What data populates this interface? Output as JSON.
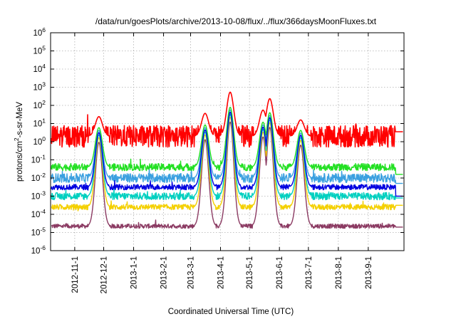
{
  "chart_data": {
    "type": "line",
    "title": "/data/run/goesPlots/archive/2013-10-08/flux/../flux/366daysMoonFluxes.txt",
    "xlabel": "Coordinated Universal Time (UTC)",
    "ylabel_base": "protons/cm",
    "ylabel_sup": "2",
    "ylabel_rest": "-s-sr-MeV",
    "y_scale": "log",
    "ylim_exp": [
      -6,
      6
    ],
    "y_ticks": [
      {
        "base": "10",
        "exp": "-6"
      },
      {
        "base": "10",
        "exp": "-5"
      },
      {
        "base": "10",
        "exp": "-4"
      },
      {
        "base": "10",
        "exp": "-3"
      },
      {
        "base": "10",
        "exp": "-2"
      },
      {
        "base": "10",
        "exp": "-1"
      },
      {
        "base": "10",
        "exp": "0"
      },
      {
        "base": "10",
        "exp": "1"
      },
      {
        "base": "10",
        "exp": "2"
      },
      {
        "base": "10",
        "exp": "3"
      },
      {
        "base": "10",
        "exp": "4"
      },
      {
        "base": "10",
        "exp": "5"
      },
      {
        "base": "10",
        "exp": "6"
      }
    ],
    "x_range": [
      "2012-10-07",
      "2013-10-08"
    ],
    "x_ticks": [
      "2012-11-1",
      "2012-12-1",
      "2013-1-1",
      "2013-2-1",
      "2013-3-1",
      "2013-4-1",
      "2013-5-1",
      "2013-6-1",
      "2013-7-1",
      "2013-8-1",
      "2013-9-1"
    ],
    "x_tick_dates": [
      "2012-11-01",
      "2012-12-01",
      "2013-01-01",
      "2013-02-01",
      "2013-03-01",
      "2013-04-01",
      "2013-05-01",
      "2013-06-01",
      "2013-07-01",
      "2013-08-01",
      "2013-09-01"
    ],
    "grid": true,
    "legend": "none",
    "series": [
      {
        "color": "#8b3a62",
        "baseline_log": -4.65,
        "noise": 0.12,
        "end_log": -4.7
      },
      {
        "color": "#f4d000",
        "baseline_log": -3.6,
        "noise": 0.15,
        "end_log": -3.5
      },
      {
        "color": "#3aa0e0",
        "baseline_log": -2.0,
        "noise": 0.25,
        "end_log": -2.3
      },
      {
        "color": "#00d0c0",
        "baseline_log": -3.0,
        "noise": 0.2,
        "end_log": -3.1
      },
      {
        "color": "#22e022",
        "baseline_log": -1.4,
        "noise": 0.2,
        "end_log": -1.8
      },
      {
        "color": "#0000e0",
        "baseline_log": -2.5,
        "noise": 0.15,
        "end_log": -3.0
      },
      {
        "color": "#ff0000",
        "baseline_log": 0.3,
        "noise": 0.6,
        "end_log": 0.55
      }
    ],
    "events": [
      {
        "date": "2012-11-26",
        "peak_log": 1.5
      },
      {
        "date": "2013-03-16",
        "peak_log": 1.7
      },
      {
        "date": "2013-04-11",
        "peak_log": 3.0
      },
      {
        "date": "2013-05-15",
        "peak_log": 1.9
      },
      {
        "date": "2013-05-22",
        "peak_log": 2.6
      },
      {
        "date": "2013-06-23",
        "peak_log": 1.3
      }
    ]
  }
}
